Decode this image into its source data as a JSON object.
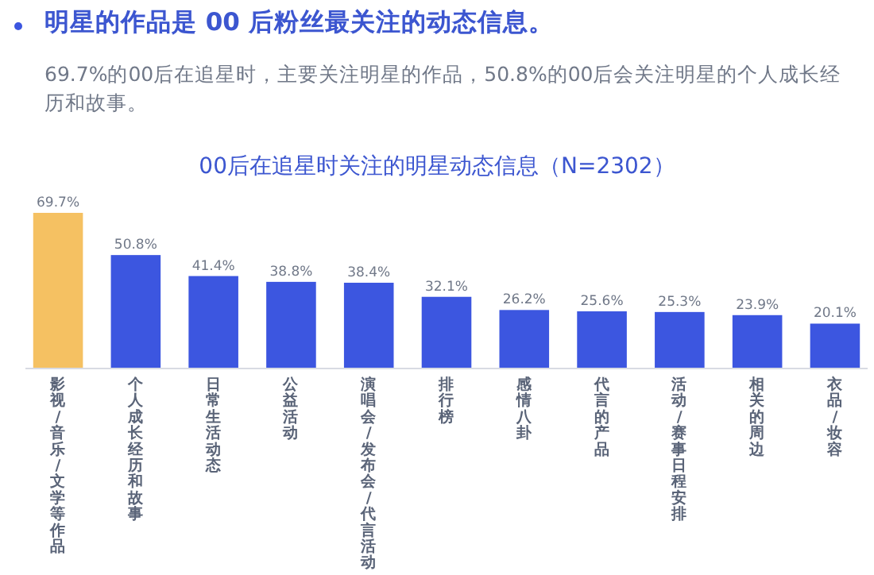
{
  "chart_data": {
    "type": "bar",
    "title": "明星的作品是 00 后粉丝最关注的动态信息。",
    "subtitle": "69.7%的00后在追星时，主要关注明星的作品，50.8%的00后会关注明星的个人成长经历和故事。",
    "annotations": [
      "00后在追星时关注的明星动态信息（N=2302）"
    ],
    "categories": [
      "影视/音乐/文学等作品",
      "个人成长经历和故事",
      "日常生活动态",
      "公益活动",
      "演唱会/发布会/代言活动",
      "排行榜",
      "感情八卦",
      "代言的产品",
      "活动/赛事日程安排",
      "相关的周边",
      "衣品/妆容"
    ],
    "values": [
      69.7,
      50.8,
      41.4,
      38.8,
      38.4,
      32.1,
      26.2,
      25.6,
      25.3,
      23.9,
      20.1
    ],
    "colors": [
      "#f5c162",
      "#3c56e0",
      "#3c56e0",
      "#3c56e0",
      "#3c56e0",
      "#3c56e0",
      "#3c56e0",
      "#3c56e0",
      "#3c56e0",
      "#3c56e0",
      "#3c56e0"
    ],
    "value_labels": [
      "69.7%",
      "50.8%",
      "41.4%",
      "38.8%",
      "38.4%",
      "32.1%",
      "26.2%",
      "25.6%",
      "25.3%",
      "23.9%",
      "20.1%"
    ]
  }
}
